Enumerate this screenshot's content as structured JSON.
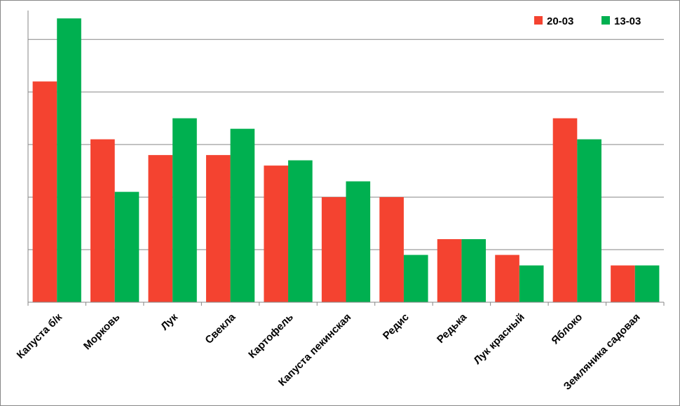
{
  "chart_data": {
    "type": "bar",
    "categories": [
      "Капуста б/к",
      "Морковь",
      "Лук",
      "Свекла",
      "Картофель",
      "Капуста пекинская",
      "Редис",
      "Редька",
      "Лук красный",
      "Яблоко",
      "Земляника садовая"
    ],
    "series": [
      {
        "name": "20-03",
        "color": "#f44330",
        "values": [
          4.2,
          3.1,
          2.8,
          2.8,
          2.6,
          2.0,
          2.0,
          1.2,
          0.9,
          3.5,
          0.7
        ]
      },
      {
        "name": "13-03",
        "color": "#00b050",
        "values": [
          5.4,
          2.1,
          3.5,
          3.3,
          2.7,
          2.3,
          0.9,
          1.2,
          0.7,
          3.1,
          0.7
        ]
      }
    ],
    "ylim": [
      0,
      5.55
    ],
    "yticks": [
      0,
      1,
      2,
      3,
      4,
      5
    ],
    "grid": true,
    "y_tick_labels": false,
    "legend": "top-right"
  }
}
